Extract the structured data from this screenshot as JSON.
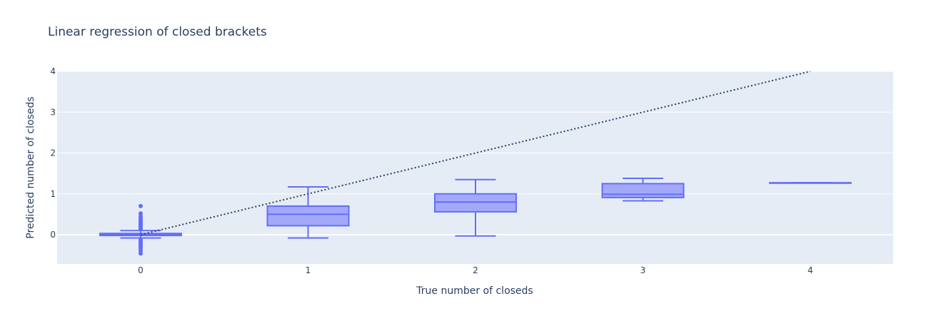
{
  "chart_data": {
    "type": "box",
    "title": "Linear regression of closed brackets",
    "xlabel": "True number of closeds",
    "ylabel": "Predicted number of closeds",
    "xlim": [
      -0.5,
      4.5
    ],
    "ylim": [
      -0.7,
      4.0
    ],
    "x_ticks": [
      "0",
      "1",
      "2",
      "3",
      "4"
    ],
    "y_ticks": [
      "0",
      "1",
      "2",
      "3",
      "4"
    ],
    "grid": true,
    "reference_line": {
      "x": [
        0,
        4
      ],
      "y": [
        0,
        4
      ],
      "style": "dotted"
    },
    "boxes": [
      {
        "x": 0,
        "min": -0.08,
        "q1": -0.02,
        "median": 0.0,
        "q3": 0.03,
        "max": 0.1,
        "outliers": [
          0.7,
          0.52,
          0.45,
          0.4,
          0.36,
          0.32,
          0.29,
          0.26,
          0.23,
          0.2,
          0.18,
          0.15,
          0.13,
          -0.12,
          -0.15,
          -0.18,
          -0.2,
          -0.23,
          -0.26,
          -0.3,
          -0.34,
          -0.4,
          -0.46
        ]
      },
      {
        "x": 1,
        "min": -0.08,
        "q1": 0.22,
        "median": 0.5,
        "q3": 0.7,
        "max": 1.17,
        "outliers": []
      },
      {
        "x": 2,
        "min": -0.03,
        "q1": 0.56,
        "median": 0.8,
        "q3": 1.0,
        "max": 1.35,
        "outliers": []
      },
      {
        "x": 3,
        "min": 0.83,
        "q1": 0.91,
        "median": 0.99,
        "q3": 1.25,
        "max": 1.38,
        "outliers": []
      },
      {
        "x": 4,
        "min": 1.27,
        "q1": 1.27,
        "median": 1.27,
        "q3": 1.27,
        "max": 1.27,
        "outliers": []
      }
    ],
    "colors": {
      "plot_bg": "#e5ecf6",
      "box_line": "#636efa",
      "box_fill": "#a3a9f8",
      "ref_line": "#2a3f5f",
      "grid": "#ffffff"
    }
  }
}
